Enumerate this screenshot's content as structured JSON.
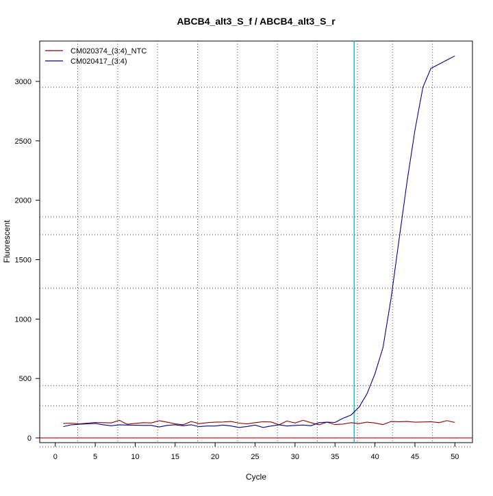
{
  "chart_data": {
    "type": "line",
    "title": "ABCB4_alt3_S_f / ABCB4_alt3_S_r",
    "xlabel": "Cycle",
    "ylabel": "Fluorescent",
    "xlim": [
      -1.95,
      52.2
    ],
    "ylim": [
      -40,
      3340
    ],
    "x_ticks": [
      0,
      5,
      10,
      15,
      20,
      25,
      30,
      35,
      40,
      45,
      50
    ],
    "y_ticks": [
      0,
      500,
      1000,
      1500,
      2000,
      2500,
      3000
    ],
    "x_grid": [
      2.8,
      7.8,
      12.8,
      17.8,
      22.8,
      27.8,
      32.8,
      37.8,
      42.2,
      47.2
    ],
    "y_grid": [
      -75,
      270,
      440,
      1260,
      1710,
      1860,
      2950
    ],
    "threshold": {
      "x": 37.4,
      "color": "#00c8e8"
    },
    "baseline": {
      "y": 0,
      "color": "#c00000"
    },
    "legend_position": "top-left",
    "series": [
      {
        "name": "CM020374_(3:4)_NTC",
        "color": "#8b0000",
        "x": [
          1,
          2,
          3,
          4,
          5,
          6,
          7,
          8,
          9,
          10,
          11,
          12,
          13,
          14,
          15,
          16,
          17,
          18,
          19,
          20,
          21,
          22,
          23,
          24,
          25,
          26,
          27,
          28,
          29,
          30,
          31,
          32,
          33,
          34,
          35,
          36,
          37,
          38,
          39,
          40,
          41,
          42,
          43,
          44,
          45,
          46,
          47,
          48,
          49,
          50
        ],
        "y": [
          122,
          124,
          118,
          124,
          130,
          128,
          126,
          148,
          115,
          122,
          128,
          126,
          145,
          132,
          118,
          110,
          138,
          120,
          128,
          132,
          134,
          138,
          124,
          118,
          128,
          136,
          134,
          110,
          142,
          125,
          148,
          128,
          110,
          132,
          112,
          116,
          128,
          120,
          132,
          125,
          112,
          138,
          136,
          138,
          132,
          134,
          136,
          128,
          145,
          130
        ]
      },
      {
        "name": "CM020417_(3:4)",
        "color": "#00008b",
        "x": [
          1,
          2,
          3,
          4,
          5,
          6,
          7,
          8,
          9,
          10,
          11,
          12,
          13,
          14,
          15,
          16,
          17,
          18,
          19,
          20,
          21,
          22,
          23,
          24,
          25,
          26,
          27,
          28,
          29,
          30,
          31,
          32,
          33,
          34,
          35,
          36,
          37,
          38,
          39,
          40,
          41,
          42,
          43,
          44,
          45,
          46,
          47,
          48,
          49,
          50
        ],
        "y": [
          95,
          110,
          115,
          118,
          122,
          110,
          102,
          110,
          108,
          106,
          105,
          105,
          92,
          105,
          110,
          102,
          110,
          95,
          100,
          100,
          108,
          100,
          88,
          96,
          108,
          88,
          100,
          110,
          100,
          105,
          108,
          102,
          128,
          132,
          130,
          165,
          192,
          258,
          370,
          540,
          760,
          1170,
          1660,
          2150,
          2590,
          2950,
          3110,
          3145,
          3180,
          3215
        ]
      }
    ]
  }
}
